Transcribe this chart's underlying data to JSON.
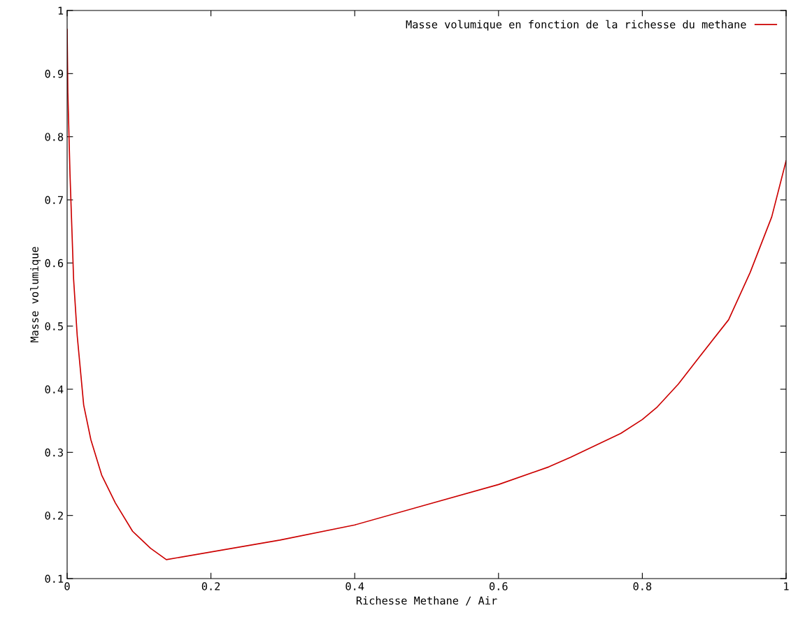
{
  "chart_data": {
    "type": "line",
    "xlabel": "Richesse Methane / Air",
    "ylabel": "Masse volumique",
    "xlim": [
      0,
      1
    ],
    "ylim": [
      0.1,
      1
    ],
    "xticks": [
      {
        "value": 0,
        "label": "0"
      },
      0.2,
      0.4,
      0.6,
      0.8,
      {
        "value": 1,
        "label": "1"
      }
    ],
    "yticks": [
      0.1,
      0.2,
      0.3,
      0.4,
      0.5,
      0.6,
      0.7,
      0.8,
      0.9,
      {
        "value": 1,
        "label": "1"
      }
    ],
    "series": [
      {
        "name": "Masse volumique en fonction de la richesse du methane",
        "color": "#cc0000",
        "x": [
          0,
          0.001,
          0.004,
          0.009,
          0.014,
          0.023,
          0.033,
          0.048,
          0.067,
          0.091,
          0.116,
          0.138,
          0.296,
          0.4,
          0.5,
          0.6,
          0.67,
          0.7,
          0.77,
          0.8,
          0.82,
          0.85,
          0.88,
          0.92,
          0.95,
          0.98,
          1.0
        ],
        "values": [
          0.97,
          0.87,
          0.74,
          0.574,
          0.485,
          0.375,
          0.32,
          0.264,
          0.22,
          0.175,
          0.148,
          0.13,
          0.161,
          0.185,
          0.217,
          0.249,
          0.277,
          0.292,
          0.33,
          0.352,
          0.371,
          0.408,
          0.452,
          0.51,
          0.585,
          0.673,
          0.762
        ]
      }
    ],
    "legend": "top right",
    "grid": false,
    "line_style": "solid",
    "marker": "none"
  }
}
